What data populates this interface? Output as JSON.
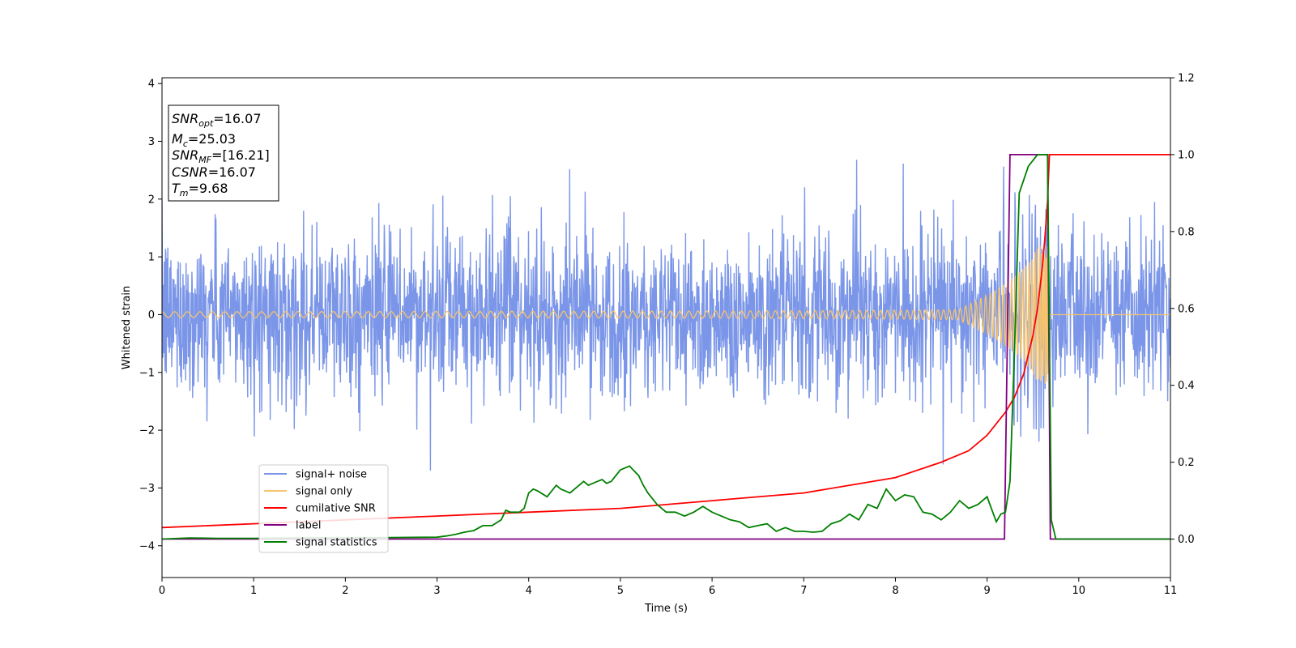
{
  "chart_data": {
    "type": "line",
    "xlabel": "Time (s)",
    "ylabel_left": "Whitened strain",
    "xlim": [
      0,
      11
    ],
    "ylim_left": [
      -4.55,
      4.1
    ],
    "ylim_right": [
      -0.1,
      1.2
    ],
    "x_ticks": [
      0,
      1,
      2,
      3,
      4,
      5,
      6,
      7,
      8,
      9,
      10,
      11
    ],
    "y_ticks_left": [
      -4,
      -3,
      -2,
      -1,
      0,
      1,
      2,
      3,
      4
    ],
    "y_ticks_right": [
      0.0,
      0.2,
      0.4,
      0.6,
      0.8,
      1.0,
      1.2
    ],
    "grid": false,
    "legend_position": "lower-left",
    "info_box": {
      "snr_opt": "=16.07",
      "mc": "=25.03",
      "snr_mf": "=[16.21]",
      "csnr": "=16.07",
      "tm": "=9.68"
    },
    "series": [
      {
        "name": "signal+ noise",
        "color": "#7b96e8",
        "axis": "left",
        "description_values": {
          "mean": 0,
          "std": 0.7,
          "x_range": [
            0,
            11
          ]
        }
      },
      {
        "name": "signal only",
        "color": "#f5c36e",
        "axis": "left",
        "chirp": {
          "t_merge": 9.68,
          "amplitude_at_start": 0.03,
          "amplitude_at_merge": 1.2
        }
      },
      {
        "name": "cumilative SNR",
        "color": "#ff0000",
        "axis": "right",
        "x": [
          0,
          1,
          2,
          3,
          4,
          5,
          6,
          7,
          7.5,
          8,
          8.5,
          8.8,
          9.0,
          9.2,
          9.3,
          9.4,
          9.5,
          9.55,
          9.6,
          9.63,
          9.66,
          9.68,
          11
        ],
        "y": [
          0.03,
          0.04,
          0.05,
          0.06,
          0.07,
          0.08,
          0.1,
          0.12,
          0.14,
          0.16,
          0.2,
          0.23,
          0.27,
          0.33,
          0.37,
          0.43,
          0.53,
          0.6,
          0.7,
          0.78,
          0.88,
          1.0,
          1.0
        ]
      },
      {
        "name": "label",
        "color": "#800080",
        "axis": "right",
        "x": [
          0,
          9.19,
          9.25,
          9.66,
          9.69,
          11
        ],
        "y": [
          0,
          0,
          1,
          1,
          0,
          0
        ]
      },
      {
        "name": "signal statistics",
        "color": "#008000",
        "axis": "right",
        "x": [
          0,
          0.3,
          0.6,
          1.0,
          1.5,
          2.0,
          2.5,
          3.0,
          3.1,
          3.2,
          3.3,
          3.4,
          3.5,
          3.6,
          3.7,
          3.75,
          3.8,
          3.9,
          3.95,
          4.0,
          4.05,
          4.1,
          4.2,
          4.3,
          4.35,
          4.4,
          4.45,
          4.5,
          4.55,
          4.6,
          4.65,
          4.7,
          4.75,
          4.8,
          4.85,
          4.9,
          5.0,
          5.1,
          5.2,
          5.25,
          5.3,
          5.4,
          5.5,
          5.6,
          5.7,
          5.8,
          5.9,
          6.0,
          6.1,
          6.2,
          6.3,
          6.4,
          6.5,
          6.6,
          6.7,
          6.8,
          6.9,
          7.0,
          7.1,
          7.2,
          7.3,
          7.4,
          7.5,
          7.6,
          7.7,
          7.8,
          7.9,
          8.0,
          8.1,
          8.2,
          8.3,
          8.4,
          8.5,
          8.6,
          8.7,
          8.8,
          8.9,
          9.0,
          9.1,
          9.15,
          9.2,
          9.25,
          9.3,
          9.35,
          9.45,
          9.55,
          9.62,
          9.66,
          9.7,
          9.75,
          9.8,
          10.0,
          11.0
        ],
        "y": [
          0.0,
          0.003,
          0.002,
          0.002,
          0.003,
          0.003,
          0.004,
          0.005,
          0.008,
          0.012,
          0.018,
          0.022,
          0.035,
          0.035,
          0.05,
          0.075,
          0.07,
          0.07,
          0.08,
          0.12,
          0.13,
          0.125,
          0.11,
          0.14,
          0.13,
          0.125,
          0.12,
          0.13,
          0.14,
          0.15,
          0.14,
          0.145,
          0.15,
          0.155,
          0.145,
          0.15,
          0.18,
          0.19,
          0.165,
          0.14,
          0.12,
          0.09,
          0.07,
          0.07,
          0.06,
          0.07,
          0.085,
          0.07,
          0.06,
          0.05,
          0.045,
          0.03,
          0.035,
          0.04,
          0.02,
          0.03,
          0.02,
          0.02,
          0.018,
          0.02,
          0.04,
          0.048,
          0.065,
          0.05,
          0.09,
          0.08,
          0.13,
          0.1,
          0.115,
          0.11,
          0.07,
          0.065,
          0.05,
          0.07,
          0.1,
          0.08,
          0.09,
          0.11,
          0.045,
          0.065,
          0.07,
          0.15,
          0.5,
          0.9,
          0.97,
          1.0,
          1.0,
          1.0,
          0.05,
          0.0,
          0.0,
          0.0,
          0.0
        ]
      }
    ]
  }
}
